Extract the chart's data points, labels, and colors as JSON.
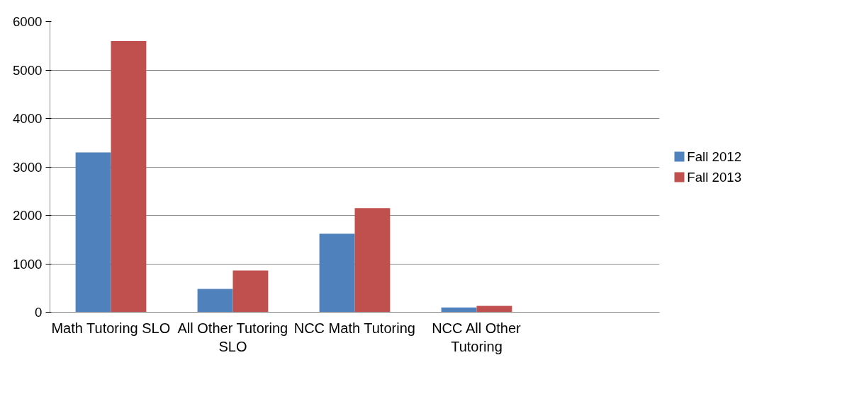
{
  "chart_data": {
    "type": "bar",
    "categories": [
      "Math Tutoring SLO",
      "All Other Tutoring SLO",
      "NCC Math Tutoring",
      "NCC All Other Tutoring",
      null
    ],
    "series": [
      {
        "name": "Fall 2012",
        "color": "#4f81bd",
        "values": [
          3300,
          480,
          1620,
          100,
          null
        ]
      },
      {
        "name": "Fall 2013",
        "color": "#c0504d",
        "values": [
          5600,
          860,
          2150,
          130,
          null
        ]
      }
    ],
    "ylim": [
      0,
      6000
    ],
    "yticks": [
      0,
      1000,
      2000,
      3000,
      4000,
      5000,
      6000
    ],
    "grid": "y",
    "legend": "right"
  }
}
